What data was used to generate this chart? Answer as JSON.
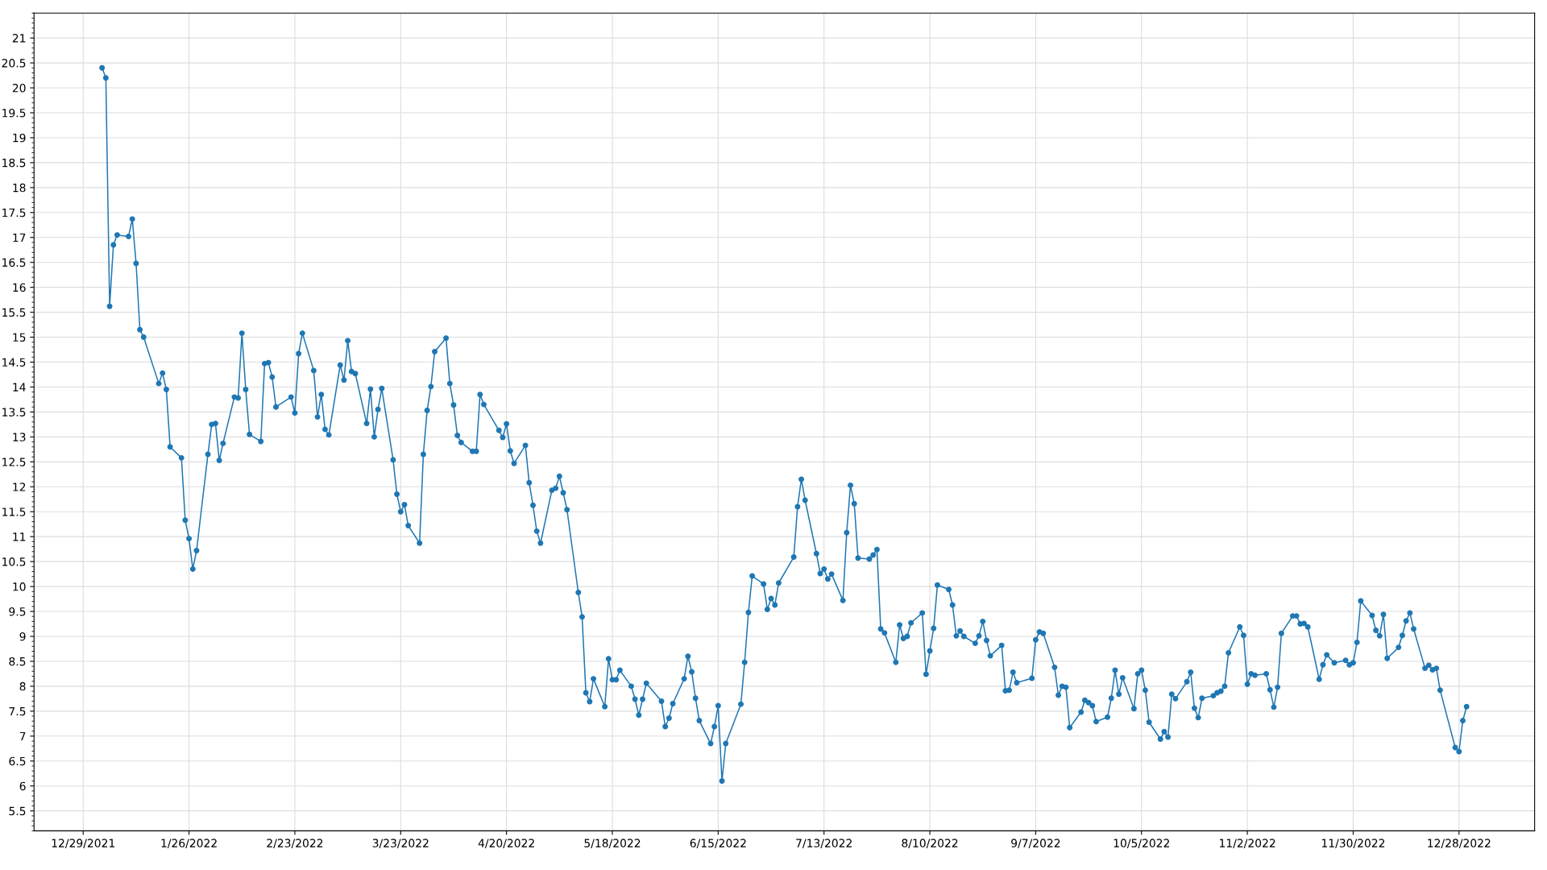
{
  "chart_data": {
    "type": "line",
    "marker": "circle",
    "line_style": "solid",
    "grid": true,
    "xlim": [
      "2021-12-16",
      "2023-01-17"
    ],
    "xticks": [
      {
        "value": "2021-12-29",
        "label": "12/29/2021"
      },
      {
        "value": "2022-01-26",
        "label": "1/26/2022"
      },
      {
        "value": "2022-02-23",
        "label": "2/23/2022"
      },
      {
        "value": "2022-03-23",
        "label": "3/23/2022"
      },
      {
        "value": "2022-04-20",
        "label": "4/20/2022"
      },
      {
        "value": "2022-05-18",
        "label": "5/18/2022"
      },
      {
        "value": "2022-06-15",
        "label": "6/15/2022"
      },
      {
        "value": "2022-07-13",
        "label": "7/13/2022"
      },
      {
        "value": "2022-08-10",
        "label": "8/10/2022"
      },
      {
        "value": "2022-09-07",
        "label": "9/7/2022"
      },
      {
        "value": "2022-10-05",
        "label": "10/5/2022"
      },
      {
        "value": "2022-11-02",
        "label": "11/2/2022"
      },
      {
        "value": "2022-11-30",
        "label": "11/30/2022"
      },
      {
        "value": "2022-12-28",
        "label": "12/28/2022"
      }
    ],
    "ylim": [
      5.1,
      21.5
    ],
    "yticks": [
      5.5,
      6,
      6.5,
      7,
      7.5,
      8,
      8.5,
      9,
      9.5,
      10,
      10.5,
      11,
      11.5,
      12,
      12.5,
      13,
      13.5,
      14,
      14.5,
      15,
      15.5,
      16,
      16.5,
      17,
      17.5,
      18,
      18.5,
      19,
      19.5,
      20,
      20.5,
      21
    ],
    "series": [
      {
        "color": "#1f77b4",
        "x": [
          "2022-01-03",
          "2022-01-04",
          "2022-01-05",
          "2022-01-06",
          "2022-01-07",
          "2022-01-10",
          "2022-01-11",
          "2022-01-12",
          "2022-01-13",
          "2022-01-14",
          "2022-01-18",
          "2022-01-19",
          "2022-01-20",
          "2022-01-21",
          "2022-01-24",
          "2022-01-25",
          "2022-01-26",
          "2022-01-27",
          "2022-01-28",
          "2022-01-31",
          "2022-02-01",
          "2022-02-02",
          "2022-02-03",
          "2022-02-04",
          "2022-02-07",
          "2022-02-08",
          "2022-02-09",
          "2022-02-10",
          "2022-02-11",
          "2022-02-14",
          "2022-02-15",
          "2022-02-16",
          "2022-02-17",
          "2022-02-18",
          "2022-02-22",
          "2022-02-23",
          "2022-02-24",
          "2022-02-25",
          "2022-02-28",
          "2022-03-01",
          "2022-03-02",
          "2022-03-03",
          "2022-03-04",
          "2022-03-07",
          "2022-03-08",
          "2022-03-09",
          "2022-03-10",
          "2022-03-11",
          "2022-03-14",
          "2022-03-15",
          "2022-03-16",
          "2022-03-17",
          "2022-03-18",
          "2022-03-21",
          "2022-03-22",
          "2022-03-23",
          "2022-03-24",
          "2022-03-25",
          "2022-03-28",
          "2022-03-29",
          "2022-03-30",
          "2022-03-31",
          "2022-04-01",
          "2022-04-04",
          "2022-04-05",
          "2022-04-06",
          "2022-04-07",
          "2022-04-08",
          "2022-04-11",
          "2022-04-12",
          "2022-04-13",
          "2022-04-14",
          "2022-04-18",
          "2022-04-19",
          "2022-04-20",
          "2022-04-21",
          "2022-04-22",
          "2022-04-25",
          "2022-04-26",
          "2022-04-27",
          "2022-04-28",
          "2022-04-29",
          "2022-05-02",
          "2022-05-03",
          "2022-05-04",
          "2022-05-05",
          "2022-05-06",
          "2022-05-09",
          "2022-05-10",
          "2022-05-11",
          "2022-05-12",
          "2022-05-13",
          "2022-05-16",
          "2022-05-17",
          "2022-05-18",
          "2022-05-19",
          "2022-05-20",
          "2022-05-23",
          "2022-05-24",
          "2022-05-25",
          "2022-05-26",
          "2022-05-27",
          "2022-05-31",
          "2022-06-01",
          "2022-06-02",
          "2022-06-03",
          "2022-06-06",
          "2022-06-07",
          "2022-06-08",
          "2022-06-09",
          "2022-06-10",
          "2022-06-13",
          "2022-06-14",
          "2022-06-15",
          "2022-06-16",
          "2022-06-17",
          "2022-06-21",
          "2022-06-22",
          "2022-06-23",
          "2022-06-24",
          "2022-06-27",
          "2022-06-28",
          "2022-06-29",
          "2022-06-30",
          "2022-07-01",
          "2022-07-05",
          "2022-07-06",
          "2022-07-07",
          "2022-07-08",
          "2022-07-11",
          "2022-07-12",
          "2022-07-13",
          "2022-07-14",
          "2022-07-15",
          "2022-07-18",
          "2022-07-19",
          "2022-07-20",
          "2022-07-21",
          "2022-07-22",
          "2022-07-25",
          "2022-07-26",
          "2022-07-27",
          "2022-07-28",
          "2022-07-29",
          "2022-08-01",
          "2022-08-02",
          "2022-08-03",
          "2022-08-04",
          "2022-08-05",
          "2022-08-08",
          "2022-08-09",
          "2022-08-10",
          "2022-08-11",
          "2022-08-12",
          "2022-08-15",
          "2022-08-16",
          "2022-08-17",
          "2022-08-18",
          "2022-08-19",
          "2022-08-22",
          "2022-08-23",
          "2022-08-24",
          "2022-08-25",
          "2022-08-26",
          "2022-08-29",
          "2022-08-30",
          "2022-08-31",
          "2022-09-01",
          "2022-09-02",
          "2022-09-06",
          "2022-09-07",
          "2022-09-08",
          "2022-09-09",
          "2022-09-12",
          "2022-09-13",
          "2022-09-14",
          "2022-09-15",
          "2022-09-16",
          "2022-09-19",
          "2022-09-20",
          "2022-09-21",
          "2022-09-22",
          "2022-09-23",
          "2022-09-26",
          "2022-09-27",
          "2022-09-28",
          "2022-09-29",
          "2022-09-30",
          "2022-10-03",
          "2022-10-04",
          "2022-10-05",
          "2022-10-06",
          "2022-10-07",
          "2022-10-10",
          "2022-10-11",
          "2022-10-12",
          "2022-10-13",
          "2022-10-14",
          "2022-10-17",
          "2022-10-18",
          "2022-10-19",
          "2022-10-20",
          "2022-10-21",
          "2022-10-24",
          "2022-10-25",
          "2022-10-26",
          "2022-10-27",
          "2022-10-28",
          "2022-10-31",
          "2022-11-01",
          "2022-11-02",
          "2022-11-03",
          "2022-11-04",
          "2022-11-07",
          "2022-11-08",
          "2022-11-09",
          "2022-11-10",
          "2022-11-11",
          "2022-11-14",
          "2022-11-15",
          "2022-11-16",
          "2022-11-17",
          "2022-11-18",
          "2022-11-21",
          "2022-11-22",
          "2022-11-23",
          "2022-11-25",
          "2022-11-28",
          "2022-11-29",
          "2022-11-30",
          "2022-12-01",
          "2022-12-02",
          "2022-12-05",
          "2022-12-06",
          "2022-12-07",
          "2022-12-08",
          "2022-12-09",
          "2022-12-12",
          "2022-12-13",
          "2022-12-14",
          "2022-12-15",
          "2022-12-16",
          "2022-12-19",
          "2022-12-20",
          "2022-12-21",
          "2022-12-22",
          "2022-12-23",
          "2022-12-27",
          "2022-12-28",
          "2022-12-29",
          "2022-12-30"
        ],
        "values": [
          20.4,
          20.2,
          15.62,
          16.85,
          17.05,
          17.02,
          17.37,
          16.48,
          15.15,
          15.0,
          14.07,
          14.28,
          13.95,
          12.8,
          12.58,
          11.33,
          10.96,
          10.35,
          10.72,
          12.65,
          13.25,
          13.27,
          12.53,
          12.87,
          13.8,
          13.78,
          15.08,
          13.95,
          13.05,
          12.91,
          14.47,
          14.49,
          14.2,
          13.6,
          13.8,
          13.48,
          14.67,
          15.08,
          14.33,
          13.4,
          13.85,
          13.15,
          13.04,
          14.44,
          14.14,
          14.93,
          14.31,
          14.27,
          13.27,
          13.96,
          13.0,
          13.55,
          13.97,
          12.54,
          11.85,
          11.5,
          11.64,
          11.22,
          10.87,
          12.65,
          13.53,
          14.01,
          14.71,
          14.98,
          14.07,
          13.64,
          13.03,
          12.89,
          12.71,
          12.71,
          13.85,
          13.65,
          13.13,
          12.99,
          13.26,
          12.72,
          12.47,
          12.83,
          12.08,
          11.63,
          11.11,
          10.87,
          11.93,
          11.97,
          12.21,
          11.88,
          11.54,
          9.88,
          9.39,
          7.87,
          7.69,
          8.15,
          7.59,
          8.55,
          8.13,
          8.13,
          8.32,
          8.0,
          7.74,
          7.42,
          7.74,
          8.06,
          7.7,
          7.19,
          7.36,
          7.65,
          8.15,
          8.6,
          8.29,
          7.76,
          7.31,
          6.85,
          7.19,
          7.61,
          6.1,
          6.85,
          7.64,
          8.48,
          9.48,
          10.21,
          10.05,
          9.54,
          9.76,
          9.63,
          10.07,
          10.59,
          11.6,
          12.15,
          11.73,
          10.66,
          10.26,
          10.35,
          10.15,
          10.25,
          9.72,
          11.08,
          12.03,
          11.66,
          10.57,
          10.55,
          10.63,
          10.74,
          9.15,
          9.07,
          8.48,
          9.23,
          8.96,
          9.0,
          9.27,
          9.47,
          8.24,
          8.71,
          9.16,
          10.03,
          9.94,
          9.63,
          9.01,
          9.11,
          9.0,
          8.86,
          9.01,
          9.3,
          8.92,
          8.61,
          8.82,
          7.91,
          7.92,
          8.28,
          8.07,
          8.16,
          8.93,
          9.09,
          9.06,
          8.38,
          7.82,
          8.0,
          7.98,
          7.17,
          7.48,
          7.72,
          7.67,
          7.61,
          7.29,
          7.38,
          7.76,
          8.32,
          7.84,
          8.17,
          7.55,
          8.25,
          8.32,
          7.92,
          7.28,
          6.94,
          7.09,
          6.98,
          7.84,
          7.75,
          8.09,
          8.28,
          7.56,
          7.37,
          7.76,
          7.81,
          7.87,
          7.9,
          8.0,
          8.67,
          9.19,
          9.02,
          8.04,
          8.25,
          8.22,
          8.25,
          7.93,
          7.58,
          7.98,
          9.06,
          9.41,
          9.41,
          9.25,
          9.26,
          9.19,
          8.14,
          8.43,
          8.63,
          8.47,
          8.52,
          8.43,
          8.47,
          8.88,
          9.71,
          9.42,
          9.12,
          9.01,
          9.44,
          8.56,
          8.78,
          9.02,
          9.31,
          9.47,
          9.15,
          8.36,
          8.42,
          8.33,
          8.36,
          7.92,
          6.77,
          6.69,
          7.31,
          7.59
        ]
      }
    ]
  }
}
